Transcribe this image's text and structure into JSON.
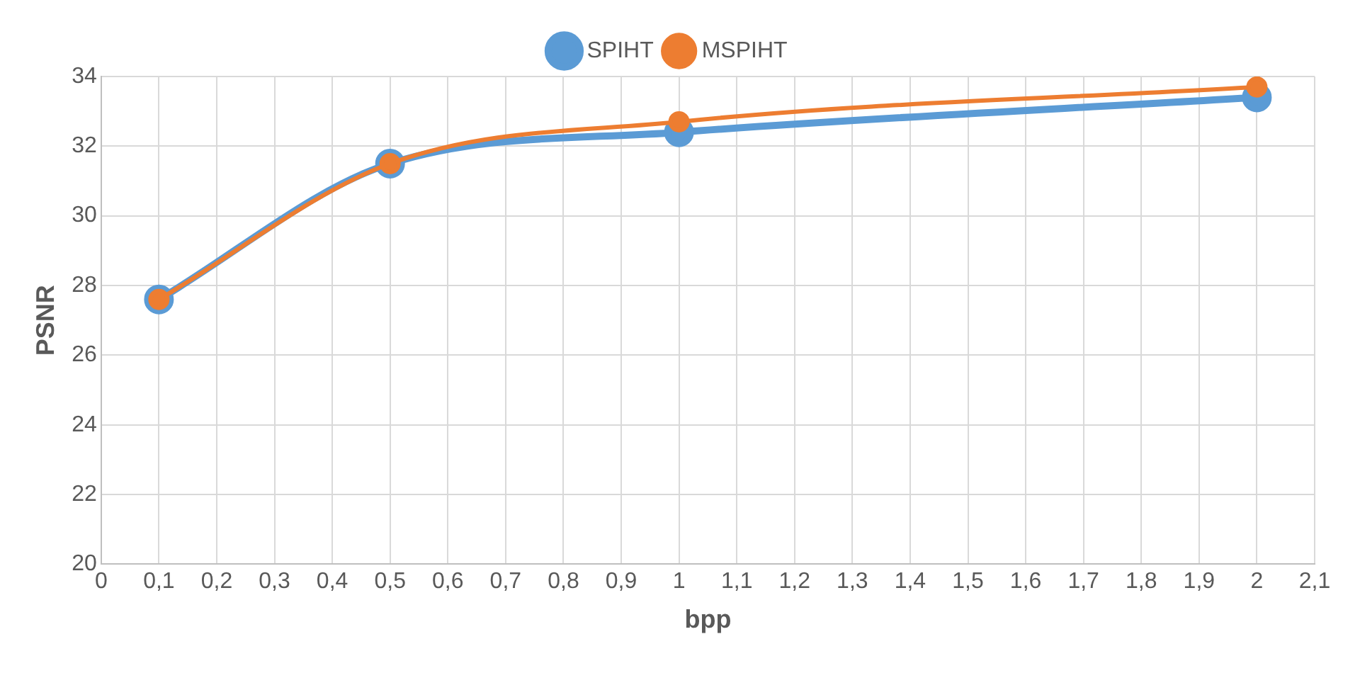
{
  "chart_data": {
    "type": "line",
    "xlabel": "bpp",
    "ylabel": "PSNR",
    "x": [
      0.1,
      0.5,
      1,
      2
    ],
    "series": [
      {
        "name": "SPIHT",
        "color": "#5b9bd5",
        "values": [
          27.6,
          31.5,
          32.4,
          33.4
        ]
      },
      {
        "name": "MSPIHT",
        "color": "#ed7d31",
        "values": [
          27.6,
          31.5,
          32.7,
          33.7
        ]
      }
    ],
    "xlim": [
      0,
      2.1
    ],
    "xticks": [
      0,
      {
        "value": 0.1,
        "label": "0,1"
      },
      {
        "value": 0.2,
        "label": "0,2"
      },
      {
        "value": 0.3,
        "label": "0,3"
      },
      {
        "value": 0.4,
        "label": "0,4"
      },
      {
        "value": 0.5,
        "label": "0,5"
      },
      {
        "value": 0.6,
        "label": "0,6"
      },
      {
        "value": 0.7,
        "label": "0,7"
      },
      {
        "value": 0.8,
        "label": "0,8"
      },
      {
        "value": 0.9,
        "label": "0,9"
      },
      1,
      {
        "value": 1.1,
        "label": "1,1"
      },
      {
        "value": 1.2,
        "label": "1,2"
      },
      {
        "value": 1.3,
        "label": "1,3"
      },
      {
        "value": 1.4,
        "label": "1,4"
      },
      {
        "value": 1.5,
        "label": "1,5"
      },
      {
        "value": 1.6,
        "label": "1,6"
      },
      {
        "value": 1.7,
        "label": "1,7"
      },
      {
        "value": 1.8,
        "label": "1,8"
      },
      {
        "value": 1.9,
        "label": "1,9"
      },
      2,
      {
        "value": 2.1,
        "label": "2,1"
      }
    ],
    "ylim": [
      20,
      34
    ],
    "yticks": [
      20,
      22,
      24,
      26,
      28,
      30,
      32,
      34
    ],
    "grid": true,
    "legend": "top",
    "marker": "circle",
    "line_style": "solid"
  }
}
